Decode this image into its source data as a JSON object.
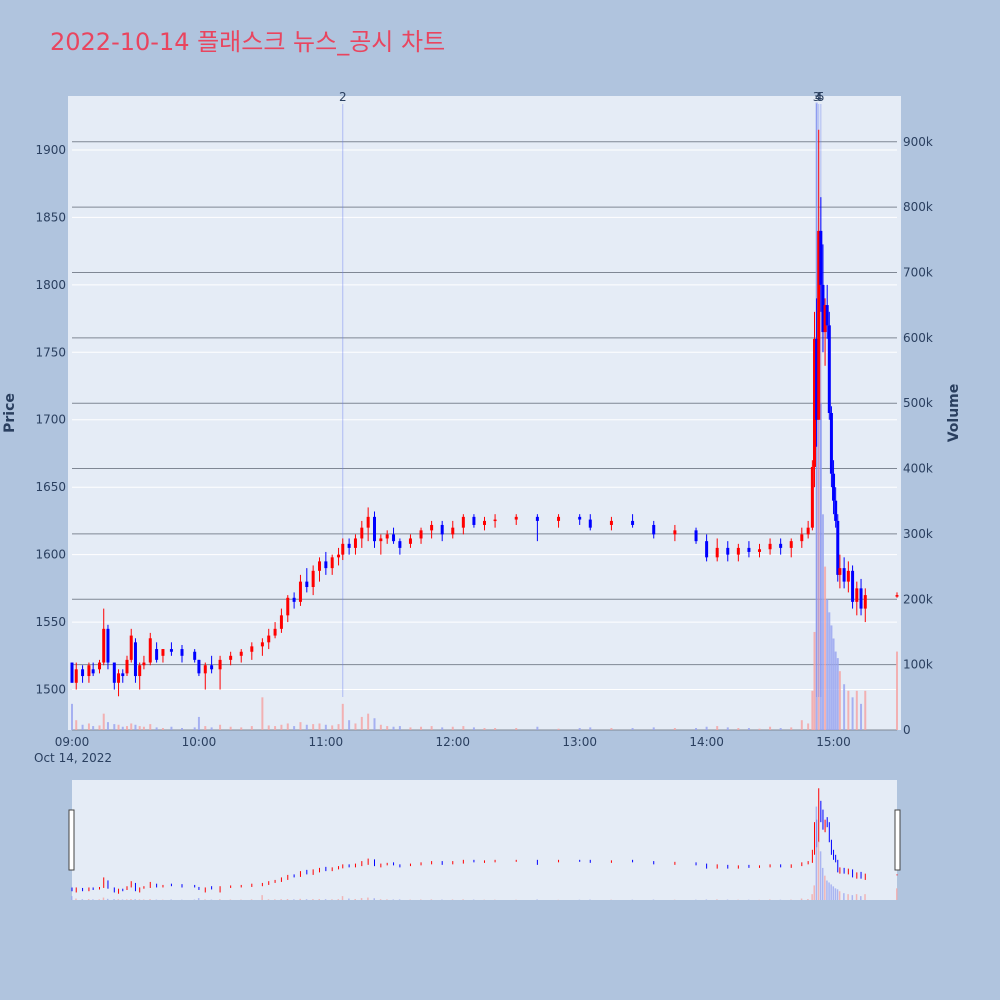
{
  "title": "2022-10-14 플래스크 뉴스_공시 차트",
  "colors": {
    "background": "#b0c4de",
    "plot_bg": "#e5ecf6",
    "up": "#ff0000",
    "down": "#0000ff",
    "volume_up": "#f4a6a6",
    "volume_down": "#9aa6f0",
    "title": "#e9455f"
  },
  "chart_data": {
    "type": "candlestick",
    "date_label": "Oct 14, 2022",
    "x_ticks": [
      "09:00",
      "10:00",
      "11:00",
      "12:00",
      "13:00",
      "14:00",
      "15:00"
    ],
    "x_range": [
      "09:00",
      "15:30"
    ],
    "price_axis": {
      "label": "Price",
      "range": [
        1470,
        1940
      ],
      "ticks": [
        1500,
        1550,
        1600,
        1650,
        1700,
        1750,
        1800,
        1850,
        1900
      ]
    },
    "volume_axis": {
      "label": "Volume",
      "range": [
        0,
        970000
      ],
      "ticks": [
        0,
        100000,
        200000,
        300000,
        400000,
        500000,
        600000,
        700000,
        800000,
        900000
      ],
      "tick_labels": [
        "0",
        "100k",
        "200k",
        "300k",
        "400k",
        "500k",
        "600k",
        "700k",
        "800k",
        "900k"
      ]
    },
    "annotations": [
      {
        "time": "11:08",
        "label": "2"
      },
      {
        "time": "14:52",
        "label": "3"
      },
      {
        "time": "14:53",
        "label": "4"
      },
      {
        "time": "14:54",
        "label": "5"
      }
    ],
    "candles": [
      [
        "09:00",
        1520,
        1520,
        1505,
        1505,
        40000
      ],
      [
        "09:02",
        1505,
        1520,
        1500,
        1515,
        15000
      ],
      [
        "09:05",
        1515,
        1518,
        1505,
        1510,
        8000
      ],
      [
        "09:08",
        1510,
        1520,
        1505,
        1518,
        10000
      ],
      [
        "09:10",
        1515,
        1520,
        1510,
        1512,
        6000
      ],
      [
        "09:13",
        1515,
        1522,
        1512,
        1520,
        7000
      ],
      [
        "09:15",
        1520,
        1560,
        1518,
        1545,
        25000
      ],
      [
        "09:17",
        1545,
        1548,
        1515,
        1520,
        12000
      ],
      [
        "09:20",
        1520,
        1520,
        1500,
        1505,
        9000
      ],
      [
        "09:22",
        1505,
        1515,
        1495,
        1512,
        8000
      ],
      [
        "09:24",
        1512,
        1515,
        1505,
        1510,
        5000
      ],
      [
        "09:26",
        1512,
        1525,
        1510,
        1522,
        6000
      ],
      [
        "09:28",
        1522,
        1545,
        1520,
        1540,
        10000
      ],
      [
        "09:30",
        1535,
        1538,
        1505,
        1510,
        8000
      ],
      [
        "09:32",
        1510,
        1520,
        1500,
        1518,
        6000
      ],
      [
        "09:34",
        1518,
        1525,
        1515,
        1520,
        5000
      ],
      [
        "09:37",
        1520,
        1542,
        1518,
        1538,
        9000
      ],
      [
        "09:40",
        1530,
        1535,
        1520,
        1522,
        4000
      ],
      [
        "09:43",
        1525,
        1530,
        1520,
        1530,
        3000
      ],
      [
        "09:47",
        1530,
        1535,
        1525,
        1528,
        5000
      ],
      [
        "09:52",
        1530,
        1533,
        1520,
        1525,
        3000
      ],
      [
        "09:58",
        1528,
        1530,
        1520,
        1522,
        4000
      ],
      [
        "10:00",
        1522,
        1522,
        1510,
        1512,
        20000
      ],
      [
        "10:03",
        1512,
        1520,
        1500,
        1518,
        6000
      ],
      [
        "10:06",
        1518,
        1525,
        1512,
        1515,
        4000
      ],
      [
        "10:10",
        1515,
        1525,
        1500,
        1522,
        8000
      ],
      [
        "10:15",
        1522,
        1528,
        1518,
        1525,
        5000
      ],
      [
        "10:20",
        1525,
        1530,
        1520,
        1528,
        4000
      ],
      [
        "10:25",
        1528,
        1535,
        1522,
        1532,
        6000
      ],
      [
        "10:30",
        1532,
        1538,
        1525,
        1535,
        50000
      ],
      [
        "10:33",
        1535,
        1545,
        1530,
        1540,
        7000
      ],
      [
        "10:36",
        1540,
        1550,
        1538,
        1545,
        6000
      ],
      [
        "10:39",
        1545,
        1560,
        1542,
        1555,
        8000
      ],
      [
        "10:42",
        1555,
        1570,
        1550,
        1568,
        10000
      ],
      [
        "10:45",
        1568,
        1572,
        1560,
        1565,
        6000
      ],
      [
        "10:48",
        1565,
        1585,
        1562,
        1580,
        12000
      ],
      [
        "10:51",
        1580,
        1590,
        1572,
        1576,
        8000
      ],
      [
        "10:54",
        1576,
        1592,
        1570,
        1588,
        9000
      ],
      [
        "10:57",
        1588,
        1598,
        1580,
        1595,
        10000
      ],
      [
        "11:00",
        1595,
        1602,
        1585,
        1590,
        8000
      ],
      [
        "11:03",
        1590,
        1600,
        1585,
        1598,
        7000
      ],
      [
        "11:06",
        1598,
        1605,
        1592,
        1600,
        9000
      ],
      [
        "11:08",
        1600,
        1612,
        1596,
        1608,
        40000
      ],
      [
        "11:11",
        1608,
        1612,
        1600,
        1605,
        15000
      ],
      [
        "11:14",
        1605,
        1615,
        1600,
        1612,
        10000
      ],
      [
        "11:17",
        1612,
        1625,
        1605,
        1620,
        20000
      ],
      [
        "11:20",
        1620,
        1635,
        1610,
        1628,
        25000
      ],
      [
        "11:23",
        1628,
        1632,
        1605,
        1610,
        18000
      ],
      [
        "11:26",
        1610,
        1615,
        1600,
        1612,
        8000
      ],
      [
        "11:29",
        1612,
        1618,
        1608,
        1615,
        6000
      ],
      [
        "11:32",
        1615,
        1620,
        1608,
        1610,
        5000
      ],
      [
        "11:35",
        1610,
        1612,
        1600,
        1605,
        6000
      ],
      [
        "11:40",
        1608,
        1615,
        1605,
        1612,
        4000
      ],
      [
        "11:45",
        1612,
        1620,
        1608,
        1618,
        5000
      ],
      [
        "11:50",
        1618,
        1625,
        1612,
        1622,
        6000
      ],
      [
        "11:55",
        1622,
        1625,
        1610,
        1615,
        4000
      ],
      [
        "12:00",
        1615,
        1625,
        1612,
        1620,
        5000
      ],
      [
        "12:05",
        1620,
        1630,
        1615,
        1628,
        6000
      ],
      [
        "12:10",
        1628,
        1630,
        1620,
        1622,
        4000
      ],
      [
        "12:15",
        1622,
        1628,
        1618,
        1625,
        3000
      ],
      [
        "12:20",
        1625,
        1630,
        1620,
        1626,
        3000
      ],
      [
        "12:30",
        1626,
        1630,
        1622,
        1628,
        3000
      ],
      [
        "12:40",
        1628,
        1630,
        1610,
        1625,
        5000
      ],
      [
        "12:50",
        1625,
        1630,
        1620,
        1628,
        2000
      ],
      [
        "13:00",
        1628,
        1630,
        1622,
        1626,
        3000
      ],
      [
        "13:05",
        1626,
        1630,
        1618,
        1620,
        4000
      ],
      [
        "13:15",
        1622,
        1628,
        1618,
        1625,
        3000
      ],
      [
        "13:25",
        1625,
        1630,
        1620,
        1622,
        3000
      ],
      [
        "13:35",
        1622,
        1625,
        1612,
        1615,
        4000
      ],
      [
        "13:45",
        1615,
        1622,
        1610,
        1618,
        3000
      ],
      [
        "13:55",
        1618,
        1620,
        1608,
        1610,
        3000
      ],
      [
        "14:00",
        1610,
        1615,
        1595,
        1598,
        5000
      ],
      [
        "14:05",
        1598,
        1612,
        1595,
        1605,
        6000
      ],
      [
        "14:10",
        1605,
        1610,
        1595,
        1600,
        4000
      ],
      [
        "14:15",
        1600,
        1608,
        1595,
        1605,
        3000
      ],
      [
        "14:20",
        1605,
        1610,
        1598,
        1602,
        3000
      ],
      [
        "14:25",
        1602,
        1608,
        1598,
        1604,
        2000
      ],
      [
        "14:30",
        1604,
        1612,
        1600,
        1608,
        5000
      ],
      [
        "14:35",
        1608,
        1612,
        1600,
        1605,
        3000
      ],
      [
        "14:40",
        1605,
        1612,
        1598,
        1610,
        4000
      ],
      [
        "14:45",
        1610,
        1620,
        1605,
        1615,
        15000
      ],
      [
        "14:48",
        1615,
        1625,
        1612,
        1620,
        10000
      ],
      [
        "14:50",
        1620,
        1670,
        1618,
        1665,
        60000
      ],
      [
        "14:51",
        1665,
        1780,
        1650,
        1760,
        150000
      ],
      [
        "14:52",
        1760,
        1790,
        1680,
        1700,
        960000
      ],
      [
        "14:53",
        1700,
        1915,
        1700,
        1840,
        600000
      ],
      [
        "14:54",
        1840,
        1865,
        1780,
        1800,
        500000
      ],
      [
        "14:55",
        1800,
        1830,
        1750,
        1765,
        330000
      ],
      [
        "14:56",
        1765,
        1790,
        1740,
        1785,
        250000
      ],
      [
        "14:57",
        1785,
        1800,
        1760,
        1770,
        200000
      ],
      [
        "14:58",
        1770,
        1780,
        1700,
        1705,
        180000
      ],
      [
        "14:59",
        1705,
        1710,
        1650,
        1660,
        160000
      ],
      [
        "15:00",
        1660,
        1670,
        1630,
        1640,
        140000
      ],
      [
        "15:01",
        1640,
        1650,
        1620,
        1625,
        120000
      ],
      [
        "15:02",
        1625,
        1630,
        1580,
        1585,
        110000
      ],
      [
        "15:03",
        1585,
        1600,
        1575,
        1590,
        90000
      ],
      [
        "15:05",
        1590,
        1598,
        1575,
        1580,
        70000
      ],
      [
        "15:07",
        1580,
        1595,
        1572,
        1588,
        60000
      ],
      [
        "15:09",
        1588,
        1592,
        1560,
        1565,
        50000
      ],
      [
        "15:11",
        1565,
        1580,
        1555,
        1575,
        60000
      ],
      [
        "15:13",
        1575,
        1582,
        1555,
        1560,
        40000
      ],
      [
        "15:15",
        1560,
        1575,
        1550,
        1570,
        60000
      ],
      [
        "15:30",
        1570,
        1572,
        1568,
        1570,
        120000
      ]
    ]
  }
}
